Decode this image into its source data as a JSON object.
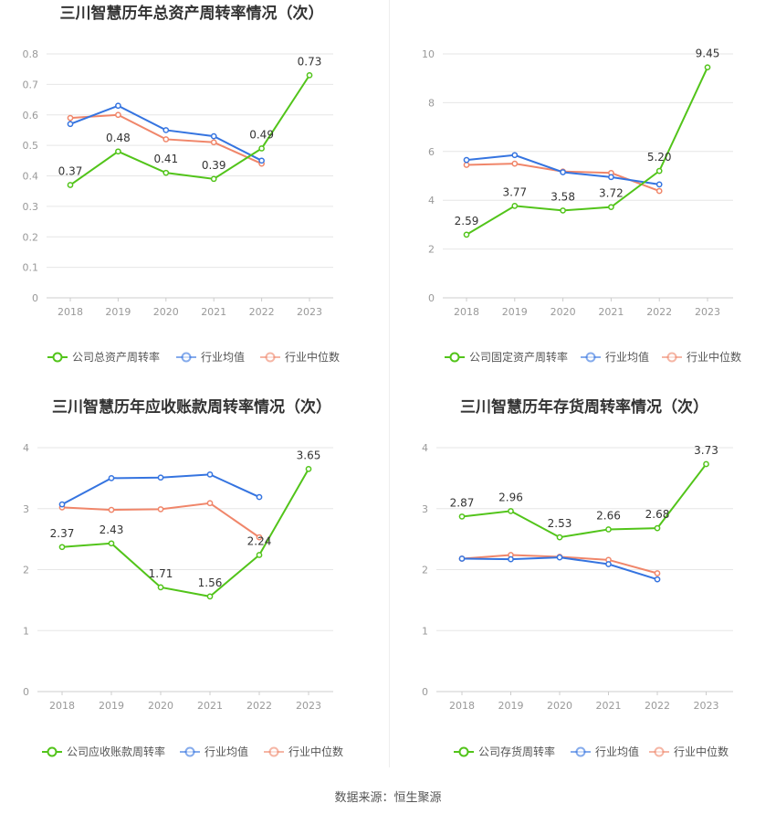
{
  "colors": {
    "company": "#52c41a",
    "avg": "#3574e0",
    "median": "#f0866a",
    "grid": "#e6e6e6",
    "axis": "#999999"
  },
  "legend": {
    "avg_label": "行业均值",
    "median_label": "行业中位数"
  },
  "source": "数据来源：恒生聚源",
  "chart_data": [
    {
      "type": "line",
      "title": "三川智慧历年总资产周转率情况（次）",
      "categories": [
        "2018",
        "2019",
        "2020",
        "2021",
        "2022",
        "2023"
      ],
      "ylim": [
        0,
        0.8
      ],
      "yticks": [
        "0",
        "0.1",
        "0.2",
        "0.3",
        "0.4",
        "0.5",
        "0.6",
        "0.7",
        "0.8"
      ],
      "grid": true,
      "legend_position": "bottom",
      "series": [
        {
          "name": "公司总资产周转率",
          "role": "company",
          "values": [
            0.37,
            0.48,
            0.41,
            0.39,
            0.49,
            0.73
          ],
          "labels": [
            "0.37",
            "0.48",
            "0.41",
            "0.39",
            "0.49",
            "0.73"
          ]
        },
        {
          "name": "行业均值",
          "role": "avg",
          "values": [
            0.57,
            0.63,
            0.55,
            0.53,
            0.45,
            null
          ]
        },
        {
          "name": "行业中位数",
          "role": "median",
          "values": [
            0.59,
            0.6,
            0.52,
            0.51,
            0.44,
            null
          ]
        }
      ]
    },
    {
      "type": "line",
      "title": "三川智慧历年固定资产周转率情况（次）",
      "categories": [
        "2018",
        "2019",
        "2020",
        "2021",
        "2022",
        "2023"
      ],
      "ylim": [
        0,
        10
      ],
      "yticks": [
        "0",
        "2",
        "4",
        "6",
        "8",
        "10"
      ],
      "grid": true,
      "legend_position": "bottom",
      "series": [
        {
          "name": "公司固定资产周转率",
          "role": "company",
          "values": [
            2.59,
            3.77,
            3.58,
            3.72,
            5.2,
            9.45
          ],
          "labels": [
            "2.59",
            "3.77",
            "3.58",
            "3.72",
            "5.20",
            "9.45"
          ]
        },
        {
          "name": "行业均值",
          "role": "avg",
          "values": [
            5.65,
            5.85,
            5.15,
            4.95,
            4.65,
            null
          ]
        },
        {
          "name": "行业中位数",
          "role": "median",
          "values": [
            5.45,
            5.5,
            5.18,
            5.12,
            4.38,
            null
          ]
        }
      ]
    },
    {
      "type": "line",
      "title": "三川智慧历年应收账款周转率情况（次）",
      "categories": [
        "2018",
        "2019",
        "2020",
        "2021",
        "2022",
        "2023"
      ],
      "ylim": [
        0,
        4
      ],
      "yticks": [
        "0",
        "1",
        "2",
        "3",
        "4"
      ],
      "grid": true,
      "legend_position": "bottom",
      "series": [
        {
          "name": "公司应收账款周转率",
          "role": "company",
          "values": [
            2.37,
            2.43,
            1.71,
            1.56,
            2.24,
            3.65
          ],
          "labels": [
            "2.37",
            "2.43",
            "1.71",
            "1.56",
            "2.24",
            "3.65"
          ]
        },
        {
          "name": "行业均值",
          "role": "avg",
          "values": [
            3.07,
            3.5,
            3.51,
            3.56,
            3.19,
            null
          ]
        },
        {
          "name": "行业中位数",
          "role": "median",
          "values": [
            3.02,
            2.98,
            2.99,
            3.09,
            2.53,
            null
          ]
        }
      ]
    },
    {
      "type": "line",
      "title": "三川智慧历年存货周转率情况（次）",
      "categories": [
        "2018",
        "2019",
        "2020",
        "2021",
        "2022",
        "2023"
      ],
      "ylim": [
        0,
        4
      ],
      "yticks": [
        "0",
        "1",
        "2",
        "3",
        "4"
      ],
      "grid": true,
      "legend_position": "bottom",
      "series": [
        {
          "name": "公司存货周转率",
          "role": "company",
          "values": [
            2.87,
            2.96,
            2.53,
            2.66,
            2.68,
            3.73
          ],
          "labels": [
            "2.87",
            "2.96",
            "2.53",
            "2.66",
            "2.68",
            "3.73"
          ]
        },
        {
          "name": "行业均值",
          "role": "avg",
          "values": [
            2.18,
            2.17,
            2.2,
            2.09,
            1.84,
            null
          ]
        },
        {
          "name": "行业中位数",
          "role": "median",
          "values": [
            2.18,
            2.24,
            2.21,
            2.16,
            1.94,
            null
          ]
        }
      ]
    }
  ]
}
